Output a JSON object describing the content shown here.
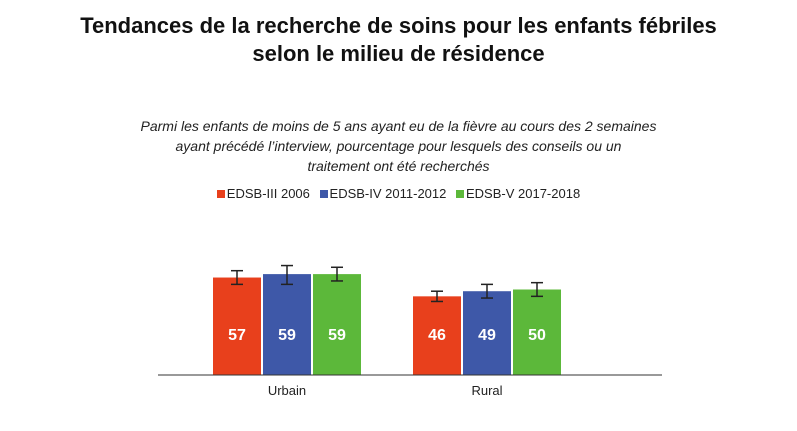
{
  "chart_data": {
    "type": "bar",
    "title": [
      "Tendances de la recherche de soins pour les enfants fébriles",
      "selon le milieu de résidence"
    ],
    "subtitle": [
      "Parmi les enfants de moins de 5 ans ayant eu de la fièvre au cours des 2 semaines",
      "ayant précédé l’interview, pourcentage pour lesquels des conseils ou un",
      "traitement ont été recherchés"
    ],
    "categories": [
      "Urbain",
      "Rural"
    ],
    "series": [
      {
        "name": "EDSB-III 2006",
        "color": "#e8401c",
        "values": [
          57,
          46
        ],
        "error_low": [
          53,
          43
        ],
        "error_high": [
          61,
          49
        ]
      },
      {
        "name": "EDSB-IV 2011-2012",
        "color": "#3e58a8",
        "values": [
          59,
          49
        ],
        "error_low": [
          53,
          45
        ],
        "error_high": [
          64,
          53
        ]
      },
      {
        "name": "EDSB-V 2017-2018",
        "color": "#5cb83a",
        "values": [
          59,
          50
        ],
        "error_low": [
          55,
          46
        ],
        "error_high": [
          63,
          54
        ]
      }
    ],
    "ylim": [
      0,
      100
    ],
    "grid": false,
    "legend_position": "top"
  }
}
